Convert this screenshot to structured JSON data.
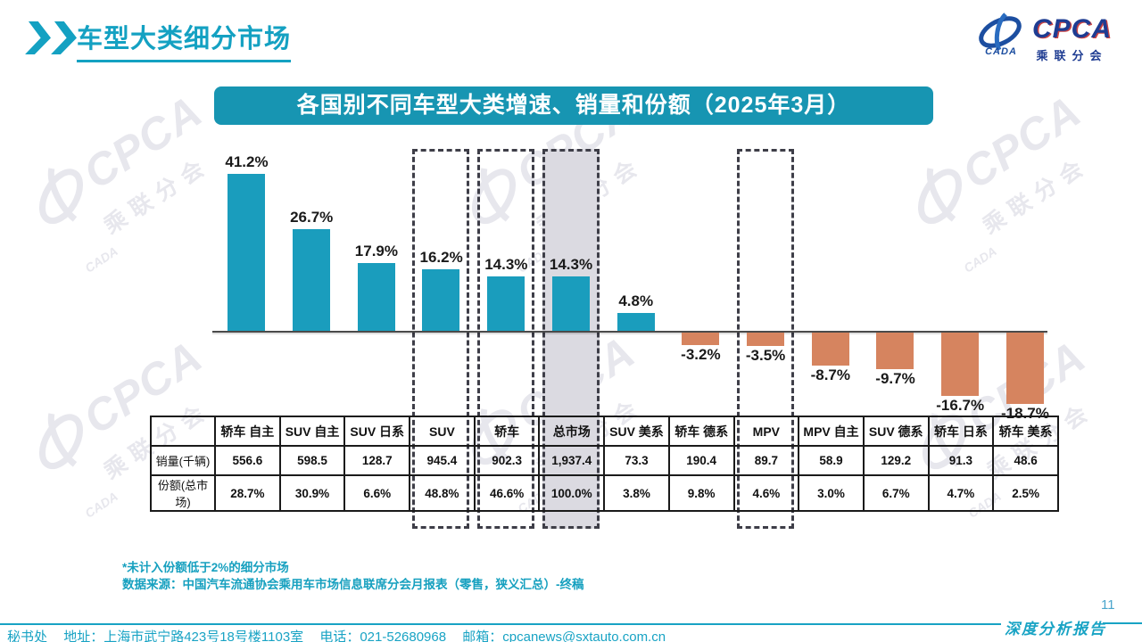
{
  "header": {
    "title": "车型大类细分市场"
  },
  "logo": {
    "cpca": "CPCA",
    "cada": "CADA",
    "association": "乘联分会"
  },
  "banner": {
    "title": "各国别不同车型大类增速、销量和份额（2025年3月）"
  },
  "chart_data": {
    "type": "bar",
    "title": "各国别不同车型大类增速、销量和份额（2025年3月）",
    "unit": "%",
    "ylim": [
      -20,
      45
    ],
    "grid": false,
    "legend": "none",
    "categories": [
      "轿车 自主",
      "SUV 自主",
      "SUV 日系",
      "SUV",
      "轿车",
      "总市场",
      "SUV 美系",
      "轿车 德系",
      "MPV",
      "MPV 自主",
      "SUV 德系",
      "轿车 日系",
      "轿车 美系"
    ],
    "values": [
      41.2,
      26.7,
      17.9,
      16.2,
      14.3,
      14.3,
      4.8,
      -3.2,
      -3.5,
      -8.7,
      -9.7,
      -16.7,
      -18.7
    ],
    "positive_color": "#1a9dbd",
    "negative_color": "#d6845f",
    "highlights": {
      "boxed_categories": [
        "SUV",
        "轿车",
        "总市场",
        "MPV"
      ],
      "boxed_indices": [
        3,
        4,
        5,
        8
      ],
      "filled_category": "总市场",
      "filled_index": 5,
      "fill_color": "#dbdae1"
    },
    "table": {
      "row_labels": [
        "销量(千辆)",
        "份额(总市场)"
      ],
      "rows": [
        [
          "556.6",
          "598.5",
          "128.7",
          "945.4",
          "902.3",
          "1,937.4",
          "73.3",
          "190.4",
          "89.7",
          "58.9",
          "129.2",
          "91.3",
          "48.6"
        ],
        [
          "28.7%",
          "30.9%",
          "6.6%",
          "48.8%",
          "46.6%",
          "100.0%",
          "3.8%",
          "9.8%",
          "4.6%",
          "3.0%",
          "6.7%",
          "4.7%",
          "2.5%"
        ]
      ]
    }
  },
  "notes": {
    "line1": "*未计入份额低于2%的细分市场",
    "line2": "数据来源：中国汽车流通协会乘用车市场信息联席分会月报表（零售，狭义汇总）-终稿"
  },
  "footer": {
    "secretariat": "秘书处",
    "address": "地址：上海市武宁路423号18号楼1103室",
    "phone": "电话：021-52680968",
    "email": "邮箱：cpcanews@sxtauto.com.cn",
    "report_label": "深度分析报告",
    "page_number": "11"
  },
  "watermark": {
    "cpca": "CPCA",
    "association": "乘联分会",
    "cada": "CADA"
  }
}
